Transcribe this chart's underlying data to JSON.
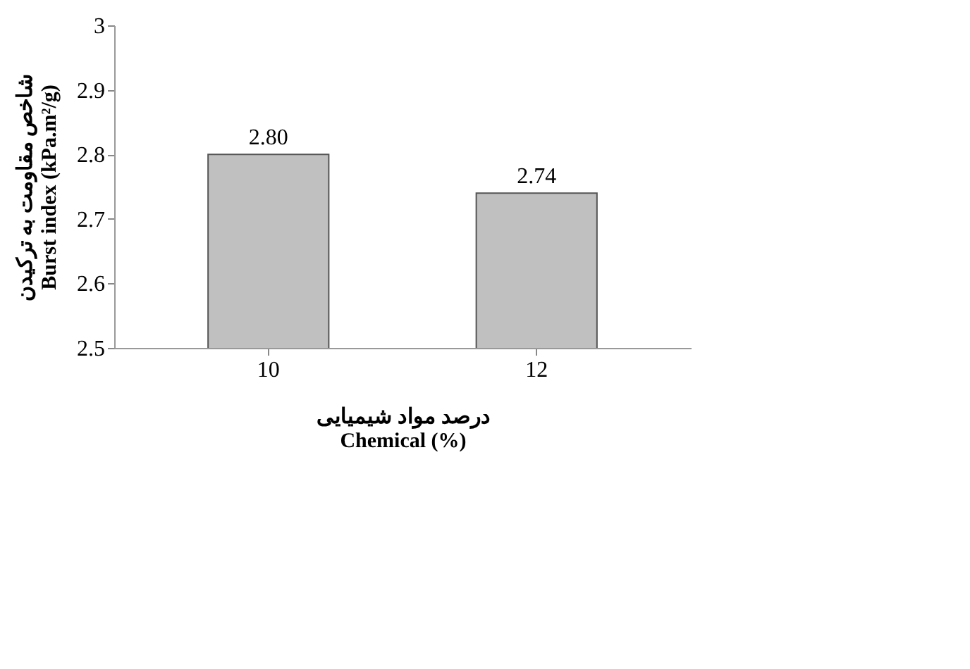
{
  "chart_data": {
    "type": "bar",
    "categories": [
      "10",
      "12"
    ],
    "values": [
      2.8,
      2.74
    ],
    "value_labels": [
      "2.80",
      "2.74"
    ],
    "color": "#c0c0c0",
    "ylim": [
      2.5,
      3
    ],
    "yticks": [
      2.5,
      2.6,
      2.7,
      2.8,
      2.9,
      3
    ],
    "ylabel": "شاخص مقاومت به ترکیدن\nBurst index (kPa.m²/g)",
    "xlabel": "درصد مواد شیمیایی\nChemical (%)",
    "grid": false
  }
}
